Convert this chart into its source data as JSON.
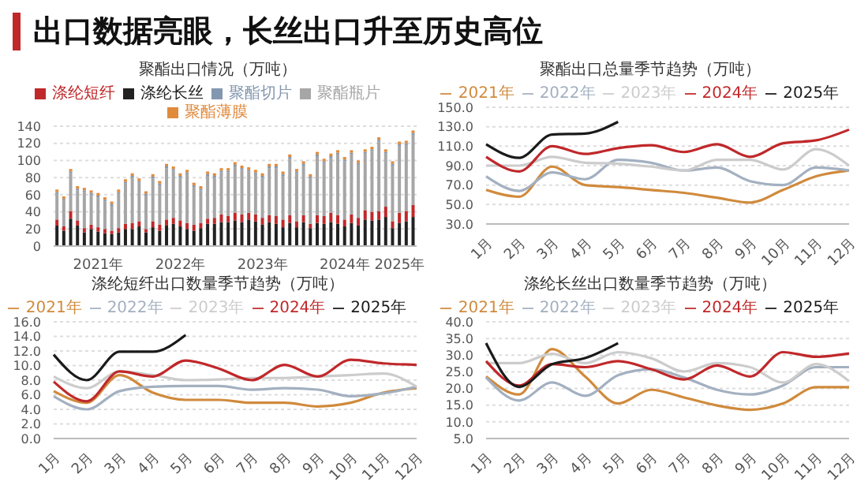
{
  "chart_data": [
    {
      "type": "other",
      "title": "出口数据亮眼，长丝出口升至历史高位"
    },
    {
      "type": "bar",
      "title": "聚酯出口情况（万吨）",
      "stacked": true,
      "legend": "top",
      "grid": "y",
      "categories": [
        null,
        null,
        null,
        null,
        null,
        null,
        "2021年",
        null,
        null,
        null,
        null,
        null,
        null,
        null,
        null,
        null,
        null,
        null,
        "2022年",
        null,
        null,
        null,
        null,
        null,
        null,
        null,
        null,
        null,
        null,
        null,
        "2023年",
        null,
        null,
        null,
        null,
        null,
        null,
        null,
        null,
        null,
        null,
        null,
        "2024年",
        null,
        null,
        null,
        null,
        null,
        null,
        null,
        "2025年",
        null,
        null
      ],
      "ylim": [
        0,
        140
      ],
      "yticks": [
        0,
        20,
        40,
        60,
        80,
        100,
        120,
        140
      ],
      "series": [
        {
          "name": "涤纶长丝",
          "color": "#222222",
          "values": [
            24,
            18,
            32,
            24,
            16,
            20,
            17,
            15,
            14,
            16,
            20,
            20,
            23,
            16,
            22,
            18,
            24,
            26,
            23,
            20,
            18,
            21,
            26,
            26,
            28,
            28,
            30,
            28,
            31,
            29,
            25,
            28,
            26,
            22,
            27,
            22,
            28,
            21,
            27,
            26,
            28,
            26,
            23,
            27,
            24,
            31,
            30,
            31,
            34,
            21,
            27,
            29,
            34
          ]
        },
        {
          "name": "涤纶短纤",
          "color": "#c0282a",
          "values": [
            7,
            5,
            9,
            6,
            5,
            5,
            5,
            5,
            4,
            5,
            6,
            7,
            6,
            4,
            7,
            7,
            7,
            7,
            7,
            7,
            7,
            6,
            6,
            7,
            9,
            7,
            9,
            9,
            8,
            8,
            8,
            8,
            9,
            9,
            9,
            7,
            8,
            5,
            9,
            9,
            11,
            10,
            8,
            10,
            9,
            11,
            10,
            10,
            12,
            8,
            12,
            12,
            14
          ]
        },
        {
          "name": "聚酯瓶片",
          "color": "#a6a6a6",
          "values": [
            30,
            30,
            44,
            35,
            42,
            35,
            35,
            32,
            29,
            40,
            47,
            53,
            45,
            39,
            50,
            46,
            60,
            55,
            50,
            57,
            44,
            38,
            50,
            47,
            49,
            51,
            54,
            52,
            48,
            47,
            47,
            55,
            56,
            51,
            66,
            56,
            58,
            53,
            69,
            62,
            64,
            71,
            68,
            70,
            62,
            66,
            71,
            81,
            62,
            65,
            78,
            77,
            82
          ]
        },
        {
          "name": "聚酯切片",
          "color": "#8497b0",
          "values": [
            2,
            2,
            2,
            2,
            2,
            2,
            2,
            2,
            2,
            2,
            2,
            2,
            2,
            2,
            2,
            2,
            2,
            2,
            2,
            2,
            2,
            2,
            2,
            2,
            2,
            2,
            2,
            2,
            2,
            2,
            2,
            2,
            2,
            2,
            2,
            2,
            2,
            2,
            2,
            2,
            2,
            2,
            2,
            2,
            2,
            2,
            2,
            2,
            2,
            2,
            2,
            2,
            2
          ]
        },
        {
          "name": "聚酯薄膜",
          "color": "#e08a3c",
          "values": [
            3,
            3,
            3,
            3,
            3,
            3,
            3,
            3,
            3,
            3,
            3,
            3,
            3,
            3,
            3,
            3,
            3,
            3,
            3,
            3,
            3,
            3,
            3,
            3,
            3,
            3,
            3,
            3,
            3,
            3,
            3,
            3,
            3,
            3,
            3,
            3,
            3,
            3,
            3,
            3,
            3,
            3,
            3,
            3,
            3,
            3,
            3,
            3,
            3,
            3,
            3,
            3,
            3
          ]
        }
      ]
    },
    {
      "type": "line",
      "title": "聚酯出口总量季节趋势（万吨）",
      "legend": "top",
      "grid": "y",
      "categories": [
        "1月",
        "2月",
        "3月",
        "4月",
        "5月",
        "6月",
        "7月",
        "8月",
        "9月",
        "10月",
        "11月",
        "12月"
      ],
      "ylim": [
        30,
        150
      ],
      "yticks": [
        {
          "value": 30,
          "label": "30.0"
        },
        {
          "value": 50,
          "label": "50.0"
        },
        {
          "value": 70,
          "label": "70.0"
        },
        {
          "value": 90,
          "label": "90.0"
        },
        {
          "value": 110,
          "label": "110.0"
        },
        {
          "value": 130,
          "label": "130.0"
        },
        {
          "value": 150,
          "label": "150.0"
        }
      ],
      "series": [
        {
          "name": "2021年",
          "color": "#d08a3c",
          "values": [
            65,
            58,
            89,
            70,
            68,
            65,
            62,
            57,
            52,
            65,
            79,
            85
          ]
        },
        {
          "name": "2022年",
          "color": "#a3b0c0",
          "values": [
            79,
            64,
            83,
            76,
            96,
            93,
            85,
            88,
            74,
            70,
            88,
            85
          ]
        },
        {
          "name": "2023年",
          "color": "#cccccc",
          "values": [
            90,
            90,
            99,
            93,
            92,
            89,
            85,
            96,
            96,
            86,
            107,
            90
          ]
        },
        {
          "name": "2024年",
          "color": "#c0282a",
          "values": [
            99,
            84,
            110,
            102,
            108,
            111,
            104,
            112,
            99,
            113,
            116,
            127
          ]
        },
        {
          "name": "2025年",
          "color": "#1a1a1a",
          "values": [
            112,
            98,
            122,
            123,
            135,
            null,
            null,
            null,
            null,
            null,
            null,
            null
          ]
        }
      ]
    },
    {
      "type": "line",
      "title": "涤纶短纤出口数量季节趋势（万吨）",
      "legend": "top",
      "grid": "y",
      "categories": [
        "1月",
        "2月",
        "3月",
        "4月",
        "5月",
        "6月",
        "7月",
        "8月",
        "9月",
        "10月",
        "11月",
        "12月"
      ],
      "ylim": [
        0,
        16
      ],
      "yticks": [
        {
          "value": 0,
          "label": "0.0"
        },
        {
          "value": 2,
          "label": "2.0"
        },
        {
          "value": 4,
          "label": "4.0"
        },
        {
          "value": 6,
          "label": "6.0"
        },
        {
          "value": 8,
          "label": "8.0"
        },
        {
          "value": 10,
          "label": "10.0"
        },
        {
          "value": 12,
          "label": "12.0"
        },
        {
          "value": 14,
          "label": "14.0"
        },
        {
          "value": 16,
          "label": "16.0"
        }
      ],
      "series": [
        {
          "name": "2021年",
          "color": "#d08a3c",
          "values": [
            6.5,
            4.9,
            8.7,
            6.3,
            5.3,
            5.3,
            4.9,
            4.9,
            4.4,
            4.9,
            6.3,
            6.9
          ]
        },
        {
          "name": "2022年",
          "color": "#a3b0c0",
          "values": [
            5.8,
            4.0,
            6.5,
            7.1,
            7.2,
            7.2,
            6.7,
            6.9,
            6.7,
            5.8,
            6.2,
            7.1
          ]
        },
        {
          "name": "2023年",
          "color": "#cccccc",
          "values": [
            8.5,
            6.9,
            9.2,
            8.7,
            8.0,
            8.1,
            8.3,
            8.3,
            8.5,
            8.7,
            8.9,
            7.1
          ]
        },
        {
          "name": "2024年",
          "color": "#c0282a",
          "values": [
            7.8,
            5.1,
            9.2,
            8.5,
            10.7,
            9.6,
            8.0,
            10.1,
            8.5,
            10.8,
            10.3,
            10.1
          ]
        },
        {
          "name": "2025年",
          "color": "#1a1a1a",
          "values": [
            11.5,
            8.0,
            11.9,
            11.9,
            14.2,
            null,
            null,
            null,
            null,
            null,
            null,
            null
          ]
        }
      ]
    },
    {
      "type": "line",
      "title": "涤纶长丝出口数量季节趋势（万吨）",
      "legend": "top",
      "grid": "y",
      "categories": [
        "1月",
        "2月",
        "3月",
        "4月",
        "5月",
        "6月",
        "7月",
        "8月",
        "9月",
        "10月",
        "11月",
        "12月"
      ],
      "ylim": [
        5,
        40
      ],
      "yticks": [
        {
          "value": 5,
          "label": "5.0"
        },
        {
          "value": 10,
          "label": "10.0"
        },
        {
          "value": 15,
          "label": "15.0"
        },
        {
          "value": 20,
          "label": "20.0"
        },
        {
          "value": 25,
          "label": "25.0"
        },
        {
          "value": 30,
          "label": "30.0"
        },
        {
          "value": 35,
          "label": "35.0"
        },
        {
          "value": 40,
          "label": "40.0"
        }
      ],
      "series": [
        {
          "name": "2021年",
          "color": "#d08a3c",
          "values": [
            23.6,
            18.2,
            31.8,
            23.6,
            15.5,
            19.6,
            17.3,
            14.9,
            13.6,
            15.5,
            20.4,
            20.4
          ]
        },
        {
          "name": "2022年",
          "color": "#a3b0c0",
          "values": [
            23.3,
            16.4,
            21.8,
            17.8,
            24.0,
            25.8,
            23.3,
            19.6,
            18.2,
            20.9,
            26.4,
            26.4
          ]
        },
        {
          "name": "2023年",
          "color": "#cccccc",
          "values": [
            27.6,
            27.6,
            30.4,
            27.6,
            30.9,
            29.1,
            25.1,
            27.6,
            26.4,
            21.8,
            27.3,
            22.2
          ]
        },
        {
          "name": "2024年",
          "color": "#c0282a",
          "values": [
            28.2,
            20.9,
            27.3,
            26.4,
            28.2,
            25.8,
            22.7,
            26.9,
            23.6,
            30.9,
            29.5,
            30.5
          ]
        },
        {
          "name": "2025年",
          "color": "#1a1a1a",
          "values": [
            33.6,
            20.5,
            27.3,
            29.1,
            33.6,
            null,
            null,
            null,
            null,
            null,
            null,
            null
          ]
        }
      ]
    }
  ]
}
